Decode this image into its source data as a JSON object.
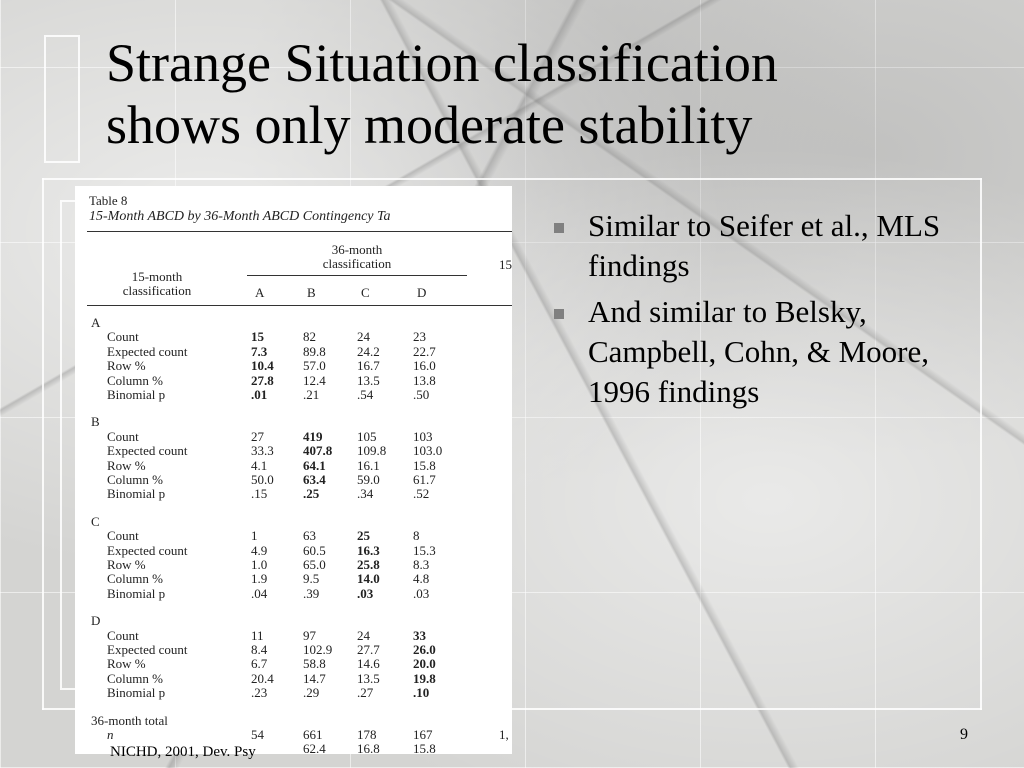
{
  "slide": {
    "title": "Strange Situation classification\nshows only moderate stability",
    "bullets": [
      "Similar to Seifer et al., MLS findings",
      "And similar to Belsky, Campbell, Cohn, & Moore, 1996 findings"
    ],
    "source": "NICHD, 2001, Dev. Psy",
    "page_number": "9"
  },
  "table": {
    "caption": "Table 8",
    "subtitle": "15-Month ABCD by 36-Month ABCD Contingency Ta",
    "col_group": "36-month classification",
    "right_partial": "15",
    "row_header": "15-month classification",
    "columns": [
      "A",
      "B",
      "C",
      "D"
    ],
    "stat_labels": [
      "Count",
      "Expected count",
      "Row %",
      "Column %",
      "Binomial p"
    ],
    "groups": [
      {
        "label": "A",
        "rows": [
          [
            "15",
            "82",
            "24",
            "23"
          ],
          [
            "7.3",
            "89.8",
            "24.2",
            "22.7"
          ],
          [
            "10.4",
            "57.0",
            "16.7",
            "16.0"
          ],
          [
            "27.8",
            "12.4",
            "13.5",
            "13.8"
          ],
          [
            ".01",
            ".21",
            ".54",
            ".50"
          ]
        ]
      },
      {
        "label": "B",
        "rows": [
          [
            "27",
            "419",
            "105",
            "103"
          ],
          [
            "33.3",
            "407.8",
            "109.8",
            "103.0"
          ],
          [
            "4.1",
            "64.1",
            "16.1",
            "15.8"
          ],
          [
            "50.0",
            "63.4",
            "59.0",
            "61.7"
          ],
          [
            ".15",
            ".25",
            ".34",
            ".52"
          ]
        ]
      },
      {
        "label": "C",
        "rows": [
          [
            "1",
            "63",
            "25",
            "8"
          ],
          [
            "4.9",
            "60.5",
            "16.3",
            "15.3"
          ],
          [
            "1.0",
            "65.0",
            "25.8",
            "8.3"
          ],
          [
            "1.9",
            "9.5",
            "14.0",
            "4.8"
          ],
          [
            ".04",
            ".39",
            ".03",
            ".03"
          ]
        ]
      },
      {
        "label": "D",
        "rows": [
          [
            "11",
            "97",
            "24",
            "33"
          ],
          [
            "8.4",
            "102.9",
            "27.7",
            "26.0"
          ],
          [
            "6.7",
            "58.8",
            "14.6",
            "20.0"
          ],
          [
            "20.4",
            "14.7",
            "13.5",
            "19.8"
          ],
          [
            ".23",
            ".29",
            ".27",
            ".10"
          ]
        ]
      }
    ],
    "total_label": "36-month total",
    "total_rows": [
      {
        "label": "n",
        "values": [
          "54",
          "661",
          "178",
          "167"
        ]
      },
      {
        "label": "",
        "values": [
          "",
          "62.4",
          "16.8",
          "15.8"
        ]
      }
    ],
    "total_right_partial": "1,"
  }
}
